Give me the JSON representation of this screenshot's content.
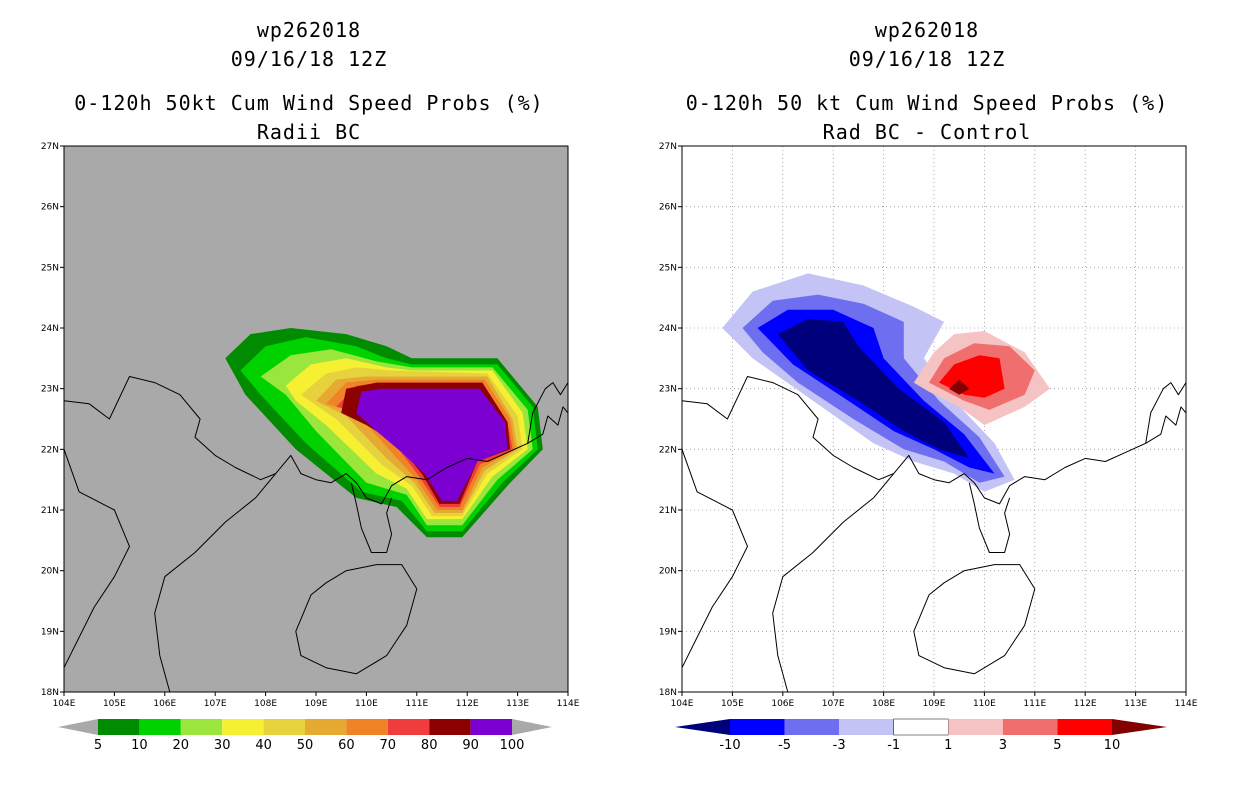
{
  "colors": {
    "land_bg": "#a9a9a9",
    "coast": "#000000",
    "grid": "#9a9a9a",
    "prob_colors": [
      "#008b00",
      "#00d200",
      "#9ae63c",
      "#f5f032",
      "#e6d23c",
      "#e6aa32",
      "#f08228",
      "#f03c3c",
      "#8c0000",
      "#7d00d2"
    ],
    "diff_colors": [
      "#00007d",
      "#0000ff",
      "#6e6ef0",
      "#c3c3f5",
      "#ffffff",
      "#f5c3c3",
      "#f06e6e",
      "#ff0000",
      "#820000"
    ]
  },
  "left_panel": {
    "title_line1": "wp262018",
    "title_line2": "09/16/18 12Z",
    "title_line3": "0-120h 50kt Cum Wind Speed Probs (%)",
    "title_line4": "Radii BC",
    "colorbar_labels": [
      "5",
      "10",
      "20",
      "30",
      "40",
      "50",
      "60",
      "70",
      "80",
      "90",
      "100"
    ]
  },
  "right_panel": {
    "title_line1": "wp262018",
    "title_line2": "09/16/18 12Z",
    "title_line3": "0-120h 50 kt Cum Wind Speed Probs (%)",
    "title_line4": "Rad BC - Control",
    "colorbar_labels": [
      "-10",
      "-5",
      "-3",
      "-1",
      "1",
      "3",
      "5",
      "10"
    ]
  },
  "axes": {
    "lon_labels": [
      "104E",
      "105E",
      "106E",
      "107E",
      "108E",
      "109E",
      "110E",
      "111E",
      "112E",
      "113E",
      "114E"
    ],
    "lat_labels": [
      "18N",
      "19N",
      "20N",
      "21N",
      "22N",
      "23N",
      "24N",
      "25N",
      "26N",
      "27N"
    ],
    "lon_range": [
      104,
      114
    ],
    "lat_range": [
      18,
      27
    ]
  }
}
